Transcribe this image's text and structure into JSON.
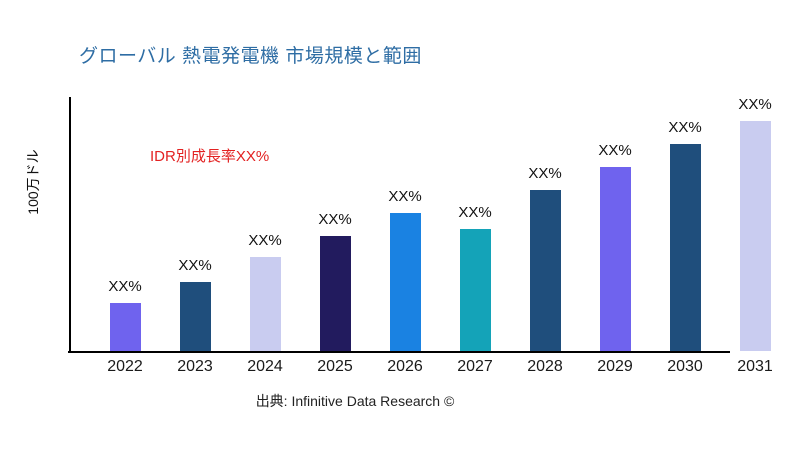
{
  "page": {
    "background": "#ffffff"
  },
  "title": {
    "text": "グローバル 熱電発電機 市場規模と範囲",
    "color": "#2E6DA4"
  },
  "annotation": {
    "text": "IDR別成長率XX%",
    "color": "#E32222"
  },
  "y_axis": {
    "label": "100万ドル"
  },
  "source": {
    "text": "出典: Infinitive Data Research ©"
  },
  "chart_data": {
    "type": "bar",
    "title": "グローバル 熱電発電機 市場規模と範囲",
    "xlabel": "",
    "ylabel": "100万ドル",
    "categories": [
      "2022",
      "2023",
      "2024",
      "2025",
      "2026",
      "2027",
      "2028",
      "2029",
      "2030",
      "2031"
    ],
    "value_labels": [
      "XX%",
      "XX%",
      "XX%",
      "XX%",
      "XX%",
      "XX%",
      "XX%",
      "XX%",
      "XX%",
      "XX%"
    ],
    "relative_values_pct_of_max": [
      21,
      30,
      41,
      50,
      60,
      53,
      70,
      80,
      90,
      100
    ],
    "bar_colors": [
      "#6F63EE",
      "#1F4E7C",
      "#C9CCF0",
      "#221B5E",
      "#1A82E2",
      "#14A3B8",
      "#1F4E7C",
      "#6F63EE",
      "#1F4E7C",
      "#C9CCF0"
    ],
    "annotation": "IDR別成長率XX%",
    "axis_color": "#000000",
    "grid": false,
    "legend": false,
    "note": "numeric values shown only as XX% placeholders on chart"
  }
}
